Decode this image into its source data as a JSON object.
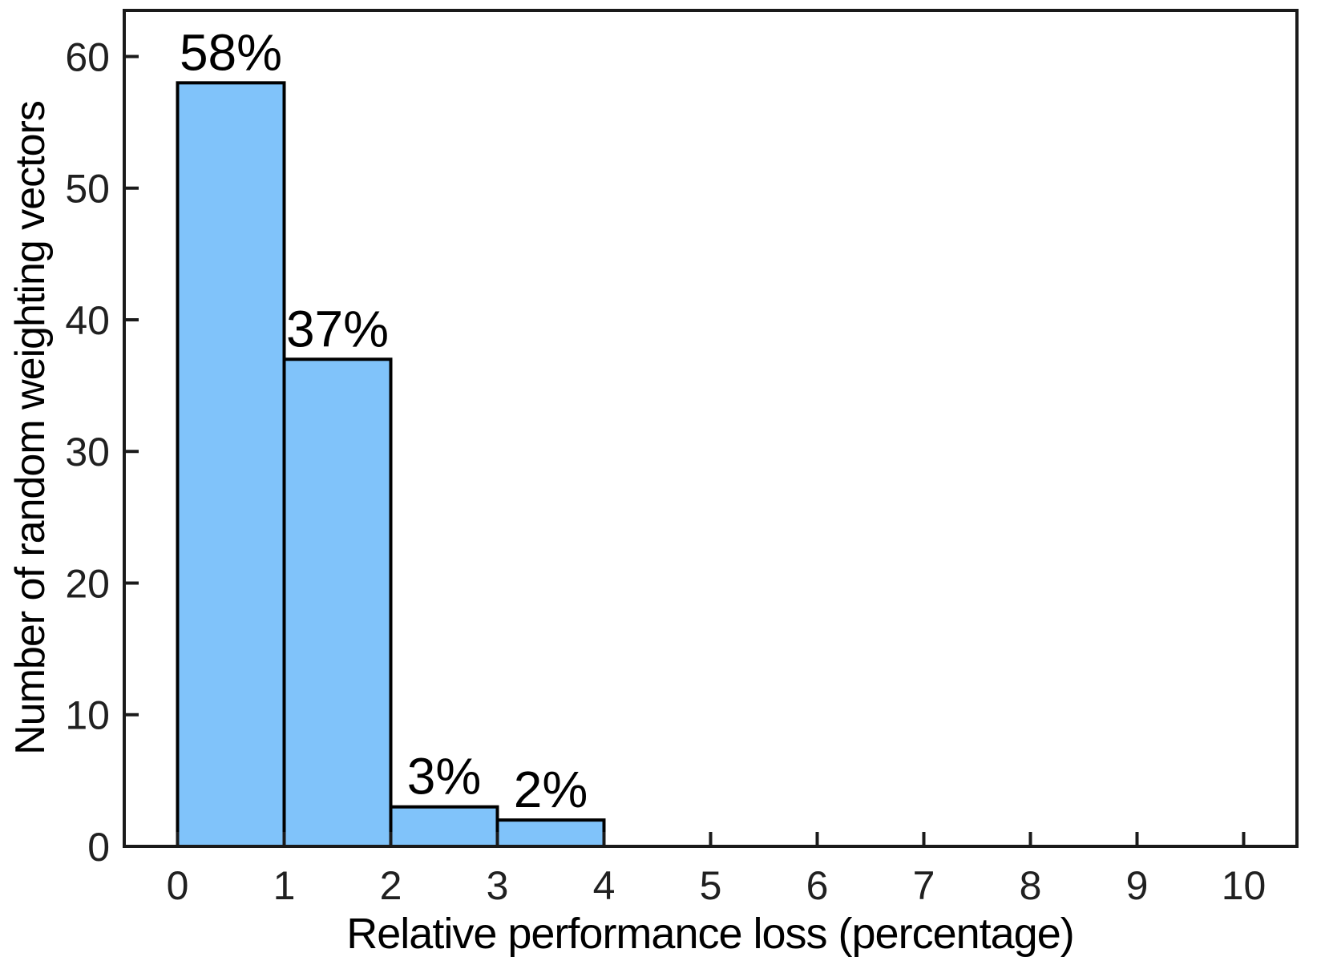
{
  "chart_data": {
    "type": "bar",
    "subtype": "histogram",
    "title": "",
    "xlabel": "Relative performance loss (percentage)",
    "ylabel": "Number of random weighting vectors",
    "bin_edges": [
      0,
      1,
      2,
      3,
      4
    ],
    "values": [
      58,
      37,
      3,
      2
    ],
    "bar_labels": [
      "58%",
      "37%",
      "3%",
      "2%"
    ],
    "x_ticks": [
      0,
      1,
      2,
      3,
      4,
      5,
      6,
      7,
      8,
      9,
      10
    ],
    "y_ticks": [
      0,
      10,
      20,
      30,
      40,
      50,
      60
    ],
    "xlim": [
      -0.5,
      10.5
    ],
    "ylim": [
      0,
      63.5
    ],
    "grid": false,
    "legend": null,
    "box": true,
    "tick_direction": "in",
    "colors": {
      "bar_fill": "#80C3FA",
      "bar_edge": "#000000",
      "axis": "#1a1a1a",
      "tick_label": "#202020",
      "bar_label_text": "#000000"
    }
  }
}
